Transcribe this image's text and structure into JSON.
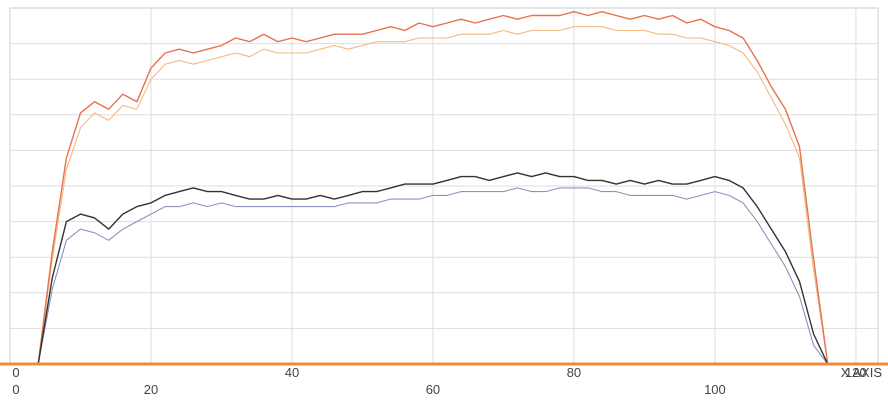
{
  "chart_data": {
    "type": "line",
    "xlabel": "X AXIS",
    "xlim": [
      0,
      122
    ],
    "ylim": [
      0,
      95
    ],
    "x_ticks_upper": [
      "0",
      "40",
      "80",
      "120"
    ],
    "x_ticks_lower": [
      "0",
      "20",
      "60",
      "100"
    ],
    "x_tick_values_upper": [
      0,
      40,
      80,
      120
    ],
    "x_tick_values_lower": [
      0,
      20,
      60,
      100
    ],
    "grid": true,
    "colors": {
      "series_top_dark": "#e8714f",
      "series_top_light": "#f2b982",
      "series_mid_dark": "#333333",
      "series_mid_light": "#8b93bd",
      "baseline": "#f08a3c",
      "grid": "#dddddd"
    },
    "x": [
      4,
      6,
      8,
      10,
      12,
      14,
      16,
      18,
      20,
      22,
      24,
      26,
      28,
      30,
      32,
      34,
      36,
      38,
      40,
      42,
      44,
      46,
      48,
      50,
      52,
      54,
      56,
      58,
      60,
      62,
      64,
      66,
      68,
      70,
      72,
      74,
      76,
      78,
      80,
      82,
      84,
      86,
      88,
      90,
      92,
      94,
      96,
      98,
      100,
      102,
      104,
      106,
      108,
      110,
      112,
      114,
      116
    ],
    "series": [
      {
        "values": [
          0,
          30,
          55,
          67,
          70,
          68,
          72,
          70,
          79,
          83,
          84,
          83,
          84,
          85,
          87,
          86,
          88,
          86,
          87,
          86,
          87,
          88,
          88,
          88,
          89,
          90,
          89,
          91,
          90,
          91,
          92,
          91,
          92,
          93,
          92,
          93,
          93,
          93,
          94,
          93,
          94,
          93,
          92,
          93,
          92,
          93,
          91,
          92,
          90,
          89,
          87,
          81,
          74,
          68,
          58,
          28,
          0
        ]
      },
      {
        "values": [
          0,
          28,
          52,
          63,
          67,
          65,
          69,
          68,
          76,
          80,
          81,
          80,
          81,
          82,
          83,
          82,
          84,
          83,
          83,
          83,
          84,
          85,
          84,
          85,
          86,
          86,
          86,
          87,
          87,
          87,
          88,
          88,
          88,
          89,
          88,
          89,
          89,
          89,
          90,
          90,
          90,
          89,
          89,
          89,
          88,
          88,
          87,
          87,
          86,
          85,
          83,
          78,
          71,
          64,
          55,
          25,
          0
        ]
      },
      {
        "values": [
          0,
          23,
          38,
          40,
          39,
          36,
          40,
          42,
          43,
          45,
          46,
          47,
          46,
          46,
          45,
          44,
          44,
          45,
          44,
          44,
          45,
          44,
          45,
          46,
          46,
          47,
          48,
          48,
          48,
          49,
          50,
          50,
          49,
          50,
          51,
          50,
          51,
          50,
          50,
          49,
          49,
          48,
          49,
          48,
          49,
          48,
          48,
          49,
          50,
          49,
          47,
          42,
          36,
          30,
          22,
          8,
          0
        ]
      },
      {
        "values": [
          0,
          20,
          33,
          36,
          35,
          33,
          36,
          38,
          40,
          42,
          42,
          43,
          42,
          43,
          42,
          42,
          42,
          42,
          42,
          42,
          42,
          42,
          43,
          43,
          43,
          44,
          44,
          44,
          45,
          45,
          46,
          46,
          46,
          46,
          47,
          46,
          46,
          47,
          47,
          47,
          46,
          46,
          45,
          45,
          45,
          45,
          44,
          45,
          46,
          45,
          43,
          38,
          32,
          26,
          18,
          5,
          0
        ]
      }
    ]
  }
}
